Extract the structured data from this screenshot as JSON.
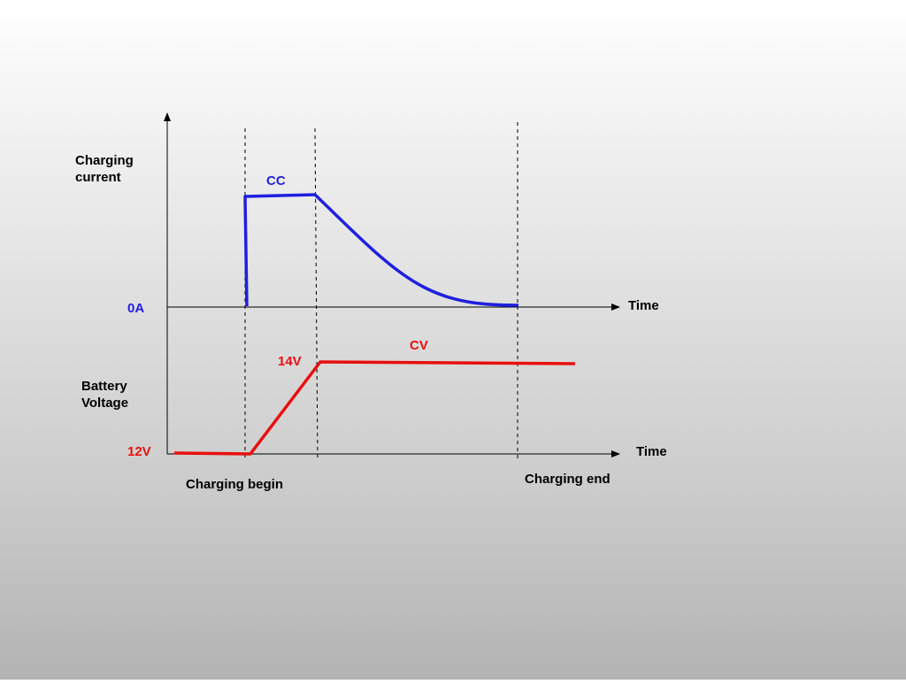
{
  "labels": {
    "charging_current_line1": "Charging",
    "charging_current_line2": "current",
    "zero_amp": "0A",
    "time_top": "Time",
    "cc": "CC",
    "cv": "CV",
    "v14": "14V",
    "battery_voltage_line1": "Battery",
    "battery_voltage_line2": "Voltage",
    "v12": "12V",
    "time_bottom": "Time",
    "charging_begin": "Charging begin",
    "charging_end": "Charging end"
  },
  "colors": {
    "current": "#1f1fdf",
    "voltage": "#e80f0f",
    "axis": "#000000",
    "text": "#000000"
  }
}
